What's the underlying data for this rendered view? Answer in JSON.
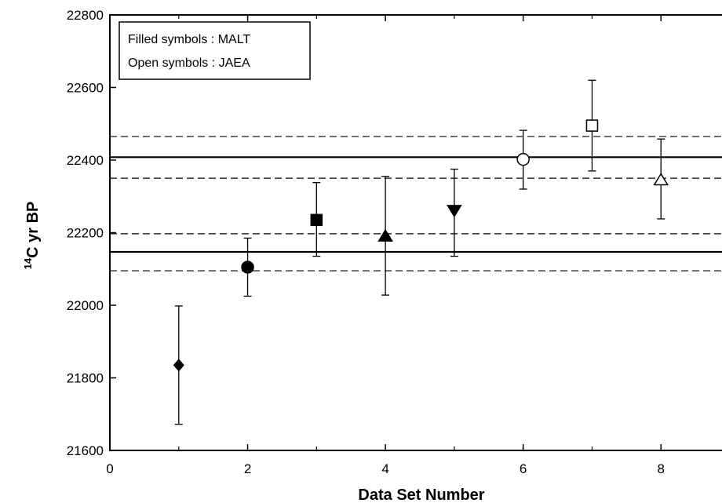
{
  "chart_data": {
    "type": "scatter",
    "title": "",
    "xlabel": "Data Set Number",
    "ylabel_sup": "14",
    "ylabel_main": "C yr BP",
    "xlim": [
      0,
      9
    ],
    "ylim": [
      21600,
      22800
    ],
    "xticks": [
      "0",
      "2",
      "4",
      "6",
      "8"
    ],
    "yticks": [
      "21600",
      "21800",
      "22000",
      "22200",
      "22400",
      "22600",
      "22800"
    ],
    "grid": false,
    "legend": {
      "placement": "top-left",
      "lines": [
        "Filled symbols : MALT",
        "Open symbols : JAEA"
      ]
    },
    "points": [
      {
        "x": 1,
        "y": 21835,
        "err_low": 21672,
        "err_high": 21998,
        "marker": "diamond",
        "filled": true
      },
      {
        "x": 2,
        "y": 22105,
        "err_low": 22025,
        "err_high": 22185,
        "marker": "circle",
        "filled": true
      },
      {
        "x": 3,
        "y": 22235,
        "err_low": 22135,
        "err_high": 22338,
        "marker": "square",
        "filled": true
      },
      {
        "x": 4,
        "y": 22190,
        "err_low": 22028,
        "err_high": 22355,
        "marker": "triangle-up",
        "filled": true
      },
      {
        "x": 5,
        "y": 22262,
        "err_low": 22135,
        "err_high": 22375,
        "marker": "triangle-down",
        "filled": true
      },
      {
        "x": 6,
        "y": 22402,
        "err_low": 22320,
        "err_high": 22482,
        "marker": "circle",
        "filled": false
      },
      {
        "x": 7,
        "y": 22495,
        "err_low": 22370,
        "err_high": 22620,
        "marker": "square",
        "filled": false
      },
      {
        "x": 8,
        "y": 22345,
        "err_low": 22238,
        "err_high": 22458,
        "marker": "triangle-up",
        "filled": false
      }
    ],
    "reference_lines": [
      {
        "y": 22408,
        "style": "solid"
      },
      {
        "y": 22465,
        "style": "dashed"
      },
      {
        "y": 22350,
        "style": "dashed"
      },
      {
        "y": 22147,
        "style": "solid"
      },
      {
        "y": 22197,
        "style": "dashed"
      },
      {
        "y": 22095,
        "style": "dashed"
      }
    ]
  }
}
